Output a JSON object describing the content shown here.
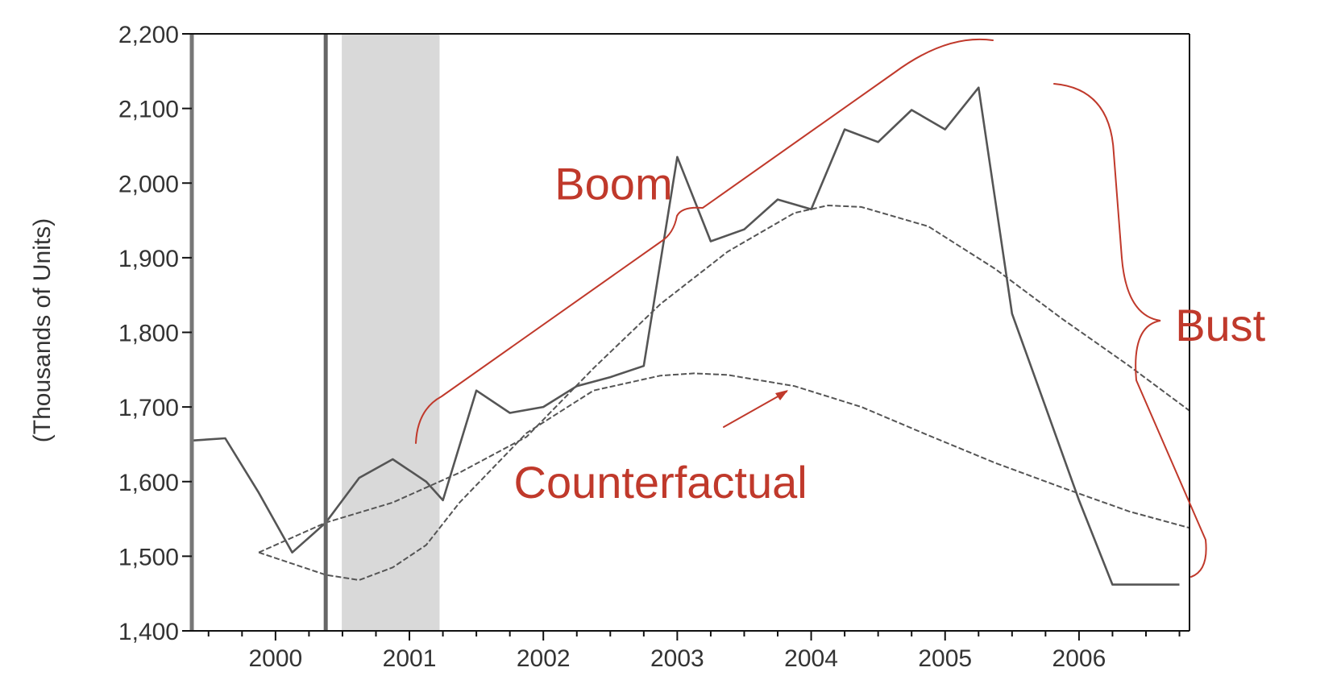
{
  "chart_data": {
    "type": "line",
    "title": "",
    "xlabel": "",
    "ylabel": "(Thousands of Units)",
    "xlim": [
      1999.5,
      2006.95
    ],
    "ylim": [
      1400,
      2200
    ],
    "y_ticks": [
      1400,
      1500,
      1600,
      1700,
      1800,
      1900,
      2000,
      2100,
      2200
    ],
    "x_tick_labels": [
      "2000",
      "2001",
      "2002",
      "2003",
      "2004",
      "2005",
      "2006"
    ],
    "grid": false,
    "shaded_region": {
      "start": 2000.62,
      "end": 2001.35,
      "color": "#d9d9d9"
    },
    "vertical_lines": [
      2000.5
    ],
    "colors": {
      "series": "#555555",
      "annotation": "#c0392b",
      "axis": "#111111"
    },
    "series": [
      {
        "name": "",
        "x": [
          1999.5,
          1999.75,
          2000.0,
          2000.25,
          2000.5,
          2000.75,
          2001.0,
          2001.25,
          2001.375,
          2001.625,
          2001.875,
          2002.125,
          2002.375,
          2002.625,
          2002.875,
          2003.125,
          2003.375,
          2003.625,
          2003.875,
          2004.125,
          2004.375,
          2004.625,
          2004.875,
          2005.125,
          2005.375,
          2005.625,
          2005.875,
          2006.125,
          2006.375,
          2006.625,
          2006.875
        ],
        "y": [
          1655,
          1658,
          1585,
          1505,
          1545,
          1605,
          1630,
          1600,
          1575,
          1722,
          1692,
          1700,
          1728,
          1740,
          1755,
          2035,
          1922,
          1938,
          1978,
          1965,
          2072,
          2055,
          2098,
          2072,
          2128,
          1825,
          1700,
          1575,
          1462,
          1462,
          1462
        ]
      },
      {
        "name": "",
        "x": [
          2000.0,
          2000.5,
          2001.0,
          2001.5,
          2002.0,
          2002.5,
          2003.0,
          2003.5,
          2004.0,
          2004.25,
          2004.5,
          2005.0,
          2005.5,
          2006.0,
          2006.5,
          2006.95
        ],
        "y": [
          1505,
          1545,
          1572,
          1612,
          1660,
          1752,
          1838,
          1908,
          1960,
          1970,
          1968,
          1942,
          1885,
          1818,
          1755,
          1695
        ]
      },
      {
        "name": "",
        "x": [
          2000.0,
          2000.5,
          2000.75,
          2001.0,
          2001.25,
          2001.5,
          2002.0,
          2002.5,
          2003.0,
          2003.25,
          2003.5,
          2004.0,
          2004.5,
          2005.0,
          2005.5,
          2006.0,
          2006.5,
          2006.95
        ],
        "y": [
          1505,
          1475,
          1468,
          1485,
          1515,
          1572,
          1665,
          1722,
          1742,
          1745,
          1743,
          1728,
          1700,
          1662,
          1625,
          1592,
          1560,
          1538
        ]
      }
    ],
    "annotations": [
      {
        "text": "Boom",
        "x": 2002.65,
        "y": 2000
      },
      {
        "text": "Counterfactual",
        "x": 2003.0,
        "y": 1600
      },
      {
        "text": "Bust",
        "x": 2007.18,
        "y": 1810
      }
    ]
  }
}
